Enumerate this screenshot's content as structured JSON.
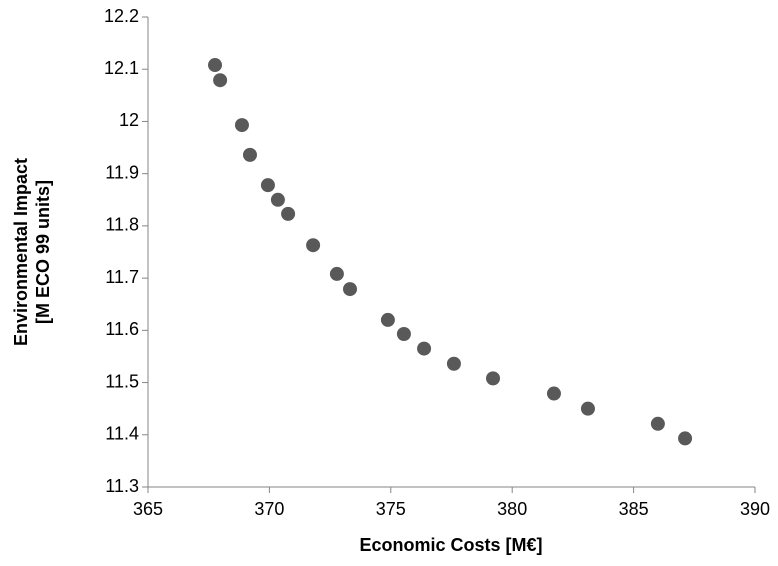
{
  "chart_data": {
    "type": "scatter",
    "xlabel": "Economic Costs [M€]",
    "ylabel": [
      "Environmental Impact",
      "[M ECO 99 units]"
    ],
    "x": [
      367.76,
      367.97,
      368.87,
      369.2,
      369.94,
      370.35,
      370.77,
      371.8,
      372.78,
      373.32,
      374.88,
      375.54,
      376.37,
      377.6,
      379.21,
      381.72,
      383.12,
      386.0,
      387.12
    ],
    "series": [
      {
        "color": "#595959",
        "values": [
          12.108,
          12.079,
          11.993,
          11.936,
          11.878,
          11.85,
          11.823,
          11.763,
          11.708,
          11.679,
          11.62,
          11.593,
          11.565,
          11.536,
          11.508,
          11.479,
          11.45,
          11.421,
          11.393
        ]
      }
    ],
    "xlim": [
      365,
      390
    ],
    "xticks": [
      365,
      370,
      375,
      380,
      385,
      390
    ],
    "ylim": [
      11.3,
      12.2
    ],
    "yticks": [
      11.3,
      11.4,
      11.5,
      11.6,
      11.7,
      11.8,
      11.9,
      12,
      12.1,
      12.2
    ],
    "grid": false
  }
}
